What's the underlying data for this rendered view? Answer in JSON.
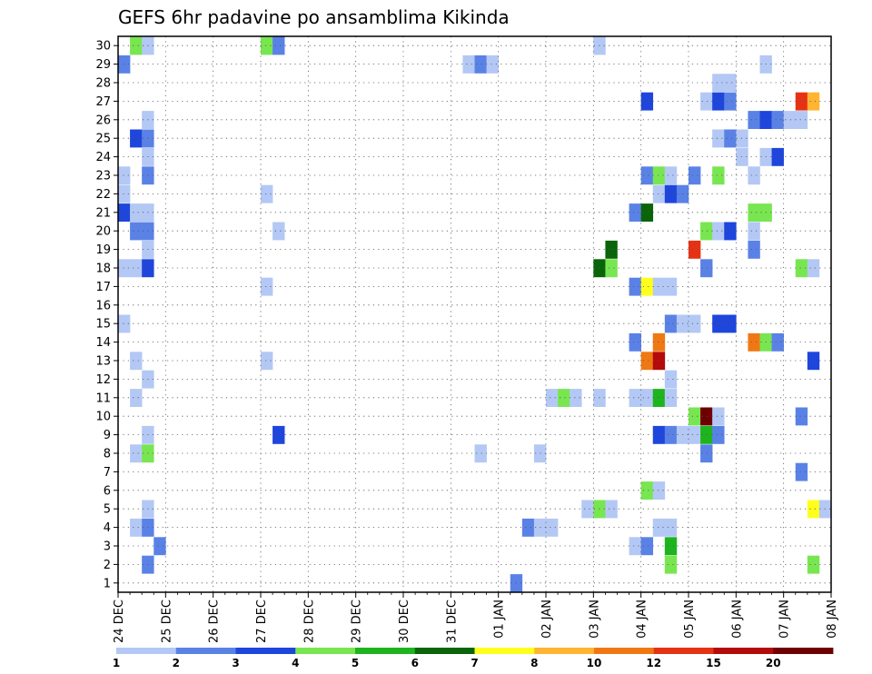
{
  "chart_data": {
    "type": "heatmap",
    "title": "GEFS 6hr padavine po ansamblima Kikinda",
    "y_ticks": [
      "1",
      "2",
      "3",
      "4",
      "5",
      "6",
      "7",
      "8",
      "9",
      "10",
      "11",
      "12",
      "13",
      "14",
      "15",
      "16",
      "17",
      "18",
      "19",
      "20",
      "21",
      "22",
      "23",
      "24",
      "25",
      "26",
      "27",
      "28",
      "29",
      "30"
    ],
    "x_ticks": [
      "24 DEC",
      "25 DEC",
      "26 DEC",
      "27 DEC",
      "28 DEC",
      "29 DEC",
      "30 DEC",
      "31 DEC",
      "01 JAN",
      "02 JAN",
      "03 JAN",
      "04 JAN",
      "05 JAN",
      "06 JAN",
      "07 JAN",
      "08 JAN"
    ],
    "x_ticks_note_omit": "",
    "grid": true,
    "colorbar": {
      "labels": [
        "1",
        "2",
        "3",
        "4",
        "5",
        "6",
        "7",
        "8",
        "10",
        "12",
        "15",
        "20"
      ],
      "colors": [
        "#b4c8f5",
        "#5a82e6",
        "#1e46dc",
        "#78e650",
        "#1eb41e",
        "#0a640a",
        "#ffff1e",
        "#ffb432",
        "#f07814",
        "#e63214",
        "#b40a0a",
        "#6e0000"
      ]
    },
    "cells": [
      {
        "m": 30,
        "t": 1,
        "c": 3
      },
      {
        "m": 30,
        "t": 2,
        "c": 0
      },
      {
        "m": 30,
        "t": 12,
        "c": 3
      },
      {
        "m": 30,
        "t": 13,
        "c": 1
      },
      {
        "m": 30,
        "t": 40,
        "c": 0
      },
      {
        "m": 29,
        "t": 0,
        "c": 1
      },
      {
        "m": 29,
        "t": 29,
        "c": 0
      },
      {
        "m": 29,
        "t": 30,
        "c": 1
      },
      {
        "m": 29,
        "t": 31,
        "c": 0
      },
      {
        "m": 29,
        "t": 54,
        "c": 0
      },
      {
        "m": 28,
        "t": 50,
        "c": 0
      },
      {
        "m": 28,
        "t": 51,
        "c": 0
      },
      {
        "m": 27,
        "t": 44,
        "c": 2
      },
      {
        "m": 27,
        "t": 49,
        "c": 0
      },
      {
        "m": 27,
        "t": 50,
        "c": 2
      },
      {
        "m": 27,
        "t": 51,
        "c": 1
      },
      {
        "m": 27,
        "t": 57,
        "c": 9
      },
      {
        "m": 27,
        "t": 58,
        "c": 7
      },
      {
        "m": 26,
        "t": 2,
        "c": 0
      },
      {
        "m": 26,
        "t": 53,
        "c": 1
      },
      {
        "m": 26,
        "t": 54,
        "c": 2
      },
      {
        "m": 26,
        "t": 55,
        "c": 1
      },
      {
        "m": 26,
        "t": 56,
        "c": 0
      },
      {
        "m": 26,
        "t": 57,
        "c": 0
      },
      {
        "m": 25,
        "t": 1,
        "c": 2
      },
      {
        "m": 25,
        "t": 2,
        "c": 1
      },
      {
        "m": 25,
        "t": 50,
        "c": 0
      },
      {
        "m": 25,
        "t": 51,
        "c": 1
      },
      {
        "m": 25,
        "t": 52,
        "c": 0
      },
      {
        "m": 24,
        "t": 2,
        "c": 0
      },
      {
        "m": 24,
        "t": 52,
        "c": 0
      },
      {
        "m": 24,
        "t": 54,
        "c": 0
      },
      {
        "m": 24,
        "t": 55,
        "c": 2
      },
      {
        "m": 23,
        "t": 0,
        "c": 0
      },
      {
        "m": 23,
        "t": 2,
        "c": 1
      },
      {
        "m": 23,
        "t": 44,
        "c": 1
      },
      {
        "m": 23,
        "t": 45,
        "c": 3
      },
      {
        "m": 23,
        "t": 46,
        "c": 0
      },
      {
        "m": 23,
        "t": 48,
        "c": 1
      },
      {
        "m": 23,
        "t": 50,
        "c": 3
      },
      {
        "m": 23,
        "t": 53,
        "c": 0
      },
      {
        "m": 22,
        "t": 0,
        "c": 0
      },
      {
        "m": 22,
        "t": 12,
        "c": 0
      },
      {
        "m": 22,
        "t": 45,
        "c": 0
      },
      {
        "m": 22,
        "t": 46,
        "c": 2
      },
      {
        "m": 22,
        "t": 47,
        "c": 1
      },
      {
        "m": 21,
        "t": 0,
        "c": 2
      },
      {
        "m": 21,
        "t": 1,
        "c": 0
      },
      {
        "m": 21,
        "t": 2,
        "c": 0
      },
      {
        "m": 21,
        "t": 43,
        "c": 1
      },
      {
        "m": 21,
        "t": 44,
        "c": 5
      },
      {
        "m": 21,
        "t": 53,
        "c": 3
      },
      {
        "m": 21,
        "t": 54,
        "c": 3
      },
      {
        "m": 20,
        "t": 1,
        "c": 1
      },
      {
        "m": 20,
        "t": 2,
        "c": 1
      },
      {
        "m": 20,
        "t": 13,
        "c": 0
      },
      {
        "m": 20,
        "t": 49,
        "c": 3
      },
      {
        "m": 20,
        "t": 50,
        "c": 0
      },
      {
        "m": 20,
        "t": 51,
        "c": 2
      },
      {
        "m": 20,
        "t": 53,
        "c": 0
      },
      {
        "m": 19,
        "t": 2,
        "c": 0
      },
      {
        "m": 19,
        "t": 41,
        "c": 5
      },
      {
        "m": 19,
        "t": 48,
        "c": 9
      },
      {
        "m": 19,
        "t": 53,
        "c": 1
      },
      {
        "m": 18,
        "t": 0,
        "c": 0
      },
      {
        "m": 18,
        "t": 1,
        "c": 0
      },
      {
        "m": 18,
        "t": 2,
        "c": 2
      },
      {
        "m": 18,
        "t": 40,
        "c": 5
      },
      {
        "m": 18,
        "t": 41,
        "c": 3
      },
      {
        "m": 18,
        "t": 49,
        "c": 1
      },
      {
        "m": 18,
        "t": 57,
        "c": 3
      },
      {
        "m": 18,
        "t": 58,
        "c": 0
      },
      {
        "m": 17,
        "t": 12,
        "c": 0
      },
      {
        "m": 17,
        "t": 43,
        "c": 1
      },
      {
        "m": 17,
        "t": 44,
        "c": 6
      },
      {
        "m": 17,
        "t": 45,
        "c": 0
      },
      {
        "m": 17,
        "t": 46,
        "c": 0
      },
      {
        "m": 15,
        "t": 0,
        "c": 0
      },
      {
        "m": 15,
        "t": 46,
        "c": 1
      },
      {
        "m": 15,
        "t": 47,
        "c": 0
      },
      {
        "m": 15,
        "t": 48,
        "c": 0
      },
      {
        "m": 15,
        "t": 50,
        "c": 2
      },
      {
        "m": 15,
        "t": 51,
        "c": 2
      },
      {
        "m": 14,
        "t": 43,
        "c": 1
      },
      {
        "m": 14,
        "t": 45,
        "c": 8
      },
      {
        "m": 14,
        "t": 53,
        "c": 8
      },
      {
        "m": 14,
        "t": 54,
        "c": 3
      },
      {
        "m": 14,
        "t": 55,
        "c": 1
      },
      {
        "m": 13,
        "t": 1,
        "c": 0
      },
      {
        "m": 13,
        "t": 12,
        "c": 0
      },
      {
        "m": 13,
        "t": 44,
        "c": 8
      },
      {
        "m": 13,
        "t": 45,
        "c": 10
      },
      {
        "m": 13,
        "t": 58,
        "c": 2
      },
      {
        "m": 12,
        "t": 2,
        "c": 0
      },
      {
        "m": 12,
        "t": 46,
        "c": 0
      },
      {
        "m": 11,
        "t": 1,
        "c": 0
      },
      {
        "m": 11,
        "t": 36,
        "c": 0
      },
      {
        "m": 11,
        "t": 37,
        "c": 3
      },
      {
        "m": 11,
        "t": 38,
        "c": 0
      },
      {
        "m": 11,
        "t": 40,
        "c": 0
      },
      {
        "m": 11,
        "t": 43,
        "c": 0
      },
      {
        "m": 11,
        "t": 44,
        "c": 0
      },
      {
        "m": 11,
        "t": 45,
        "c": 4
      },
      {
        "m": 11,
        "t": 46,
        "c": 0
      },
      {
        "m": 10,
        "t": 48,
        "c": 3
      },
      {
        "m": 10,
        "t": 49,
        "c": 11
      },
      {
        "m": 10,
        "t": 50,
        "c": 0
      },
      {
        "m": 10,
        "t": 57,
        "c": 1
      },
      {
        "m": 9,
        "t": 2,
        "c": 0
      },
      {
        "m": 9,
        "t": 13,
        "c": 2
      },
      {
        "m": 9,
        "t": 45,
        "c": 2
      },
      {
        "m": 9,
        "t": 46,
        "c": 1
      },
      {
        "m": 9,
        "t": 47,
        "c": 0
      },
      {
        "m": 9,
        "t": 48,
        "c": 0
      },
      {
        "m": 9,
        "t": 49,
        "c": 4
      },
      {
        "m": 9,
        "t": 50,
        "c": 1
      },
      {
        "m": 8,
        "t": 1,
        "c": 0
      },
      {
        "m": 8,
        "t": 2,
        "c": 3
      },
      {
        "m": 8,
        "t": 30,
        "c": 0
      },
      {
        "m": 8,
        "t": 35,
        "c": 0
      },
      {
        "m": 8,
        "t": 49,
        "c": 1
      },
      {
        "m": 7,
        "t": 57,
        "c": 1
      },
      {
        "m": 6,
        "t": 44,
        "c": 3
      },
      {
        "m": 6,
        "t": 45,
        "c": 0
      },
      {
        "m": 5,
        "t": 2,
        "c": 0
      },
      {
        "m": 5,
        "t": 39,
        "c": 0
      },
      {
        "m": 5,
        "t": 40,
        "c": 3
      },
      {
        "m": 5,
        "t": 41,
        "c": 0
      },
      {
        "m": 5,
        "t": 58,
        "c": 6
      },
      {
        "m": 5,
        "t": 59,
        "c": 0
      },
      {
        "m": 4,
        "t": 1,
        "c": 0
      },
      {
        "m": 4,
        "t": 2,
        "c": 1
      },
      {
        "m": 4,
        "t": 34,
        "c": 1
      },
      {
        "m": 4,
        "t": 35,
        "c": 0
      },
      {
        "m": 4,
        "t": 36,
        "c": 0
      },
      {
        "m": 4,
        "t": 45,
        "c": 0
      },
      {
        "m": 4,
        "t": 46,
        "c": 0
      },
      {
        "m": 3,
        "t": 3,
        "c": 1
      },
      {
        "m": 3,
        "t": 43,
        "c": 0
      },
      {
        "m": 3,
        "t": 44,
        "c": 1
      },
      {
        "m": 3,
        "t": 46,
        "c": 4
      },
      {
        "m": 2,
        "t": 2,
        "c": 1
      },
      {
        "m": 2,
        "t": 46,
        "c": 3
      },
      {
        "m": 2,
        "t": 58,
        "c": 3
      },
      {
        "m": 1,
        "t": 33,
        "c": 1
      }
    ]
  }
}
